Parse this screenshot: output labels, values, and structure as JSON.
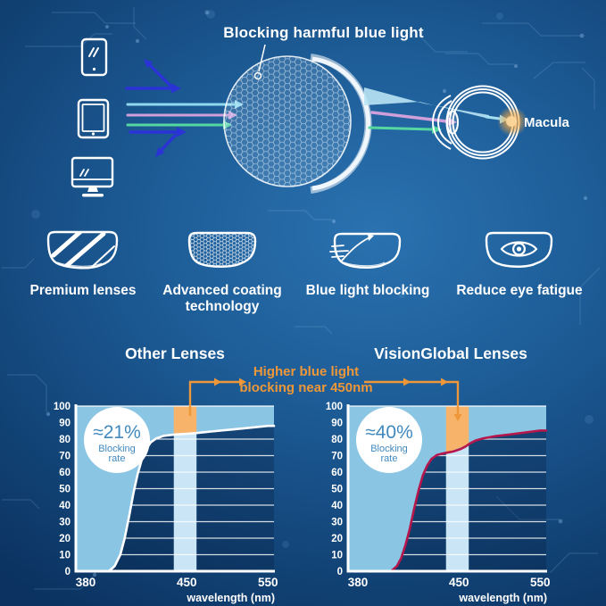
{
  "top_diagram": {
    "blocking_label": "Blocking harmful blue light",
    "macula_label": "Macula",
    "device_icons": [
      "smartphone-icon",
      "tablet-icon",
      "monitor-icon"
    ],
    "ray_colors": {
      "blue_reflected": "#2b33d6",
      "cyan": "#8fd9ee",
      "pink": "#cf9fd9",
      "green": "#55d7a1"
    }
  },
  "features": [
    {
      "icon": "premium-lenses-icon",
      "label": "Premium lenses"
    },
    {
      "icon": "advanced-coating-icon",
      "label": "Advanced coating technology"
    },
    {
      "icon": "blue-light-blocking-icon",
      "label": "Blue light blocking"
    },
    {
      "icon": "reduce-eye-fatigue-icon",
      "label": "Reduce eye fatigue"
    }
  ],
  "charts_section": {
    "annotation_line1": "Higher blue light",
    "annotation_line2": "blocking near 450nm"
  },
  "colors": {
    "annotation": "#ee9738",
    "area_fill": "#8ac5e4",
    "band_fill": "#c9e5f6",
    "band_highlight": "#f6b369",
    "badge_text": "#4089bf",
    "curve_other": "#ffffff",
    "curve_visionglobal": "#b5164b",
    "glow_orange": "#ffb85c"
  },
  "chart_data": [
    {
      "type": "area",
      "title": "Other Lenses",
      "badge": {
        "value": "≈21%",
        "label_line1": "Blocking",
        "label_line2": "rate"
      },
      "curve_color": "#ffffff",
      "xlabel": "wavelength (nm)",
      "xticks": [
        380,
        450,
        550
      ],
      "ylim": [
        0,
        100
      ],
      "ytick_step": 10,
      "grid": true,
      "band_nm": {
        "from": 441,
        "to": 462
      },
      "points": [
        [
          380,
          0
        ],
        [
          396,
          0
        ],
        [
          400,
          3
        ],
        [
          404,
          10
        ],
        [
          407,
          20
        ],
        [
          410,
          33
        ],
        [
          413,
          47
        ],
        [
          416,
          59
        ],
        [
          419,
          68
        ],
        [
          422,
          74
        ],
        [
          425,
          78
        ],
        [
          429,
          80.5
        ],
        [
          434,
          82
        ],
        [
          442,
          82.8
        ],
        [
          450,
          83.2
        ],
        [
          462,
          83.7
        ],
        [
          480,
          84.6
        ],
        [
          505,
          85.8
        ],
        [
          530,
          87
        ],
        [
          550,
          88
        ]
      ]
    },
    {
      "type": "area",
      "title": "VisionGlobal Lenses",
      "badge": {
        "value": "≈40%",
        "label_line1": "Blocking",
        "label_line2": "rate"
      },
      "curve_color": "#b5164b",
      "xlabel": "wavelength (nm)",
      "xticks": [
        380,
        450,
        550
      ],
      "ylim": [
        0,
        100
      ],
      "ytick_step": 10,
      "grid": true,
      "band_nm": {
        "from": 441,
        "to": 462
      },
      "points": [
        [
          380,
          0
        ],
        [
          403,
          0
        ],
        [
          407,
          3
        ],
        [
          410,
          8
        ],
        [
          413,
          16
        ],
        [
          416,
          26
        ],
        [
          419,
          38
        ],
        [
          422,
          49
        ],
        [
          425,
          58
        ],
        [
          428,
          64
        ],
        [
          431,
          68
        ],
        [
          435,
          70.5
        ],
        [
          440,
          71.5
        ],
        [
          446,
          72.5
        ],
        [
          452,
          74
        ],
        [
          458,
          75.5
        ],
        [
          464,
          77.5
        ],
        [
          470,
          79
        ],
        [
          480,
          80.5
        ],
        [
          495,
          81.8
        ],
        [
          515,
          83
        ],
        [
          535,
          84.2
        ],
        [
          550,
          85.2
        ]
      ]
    }
  ]
}
